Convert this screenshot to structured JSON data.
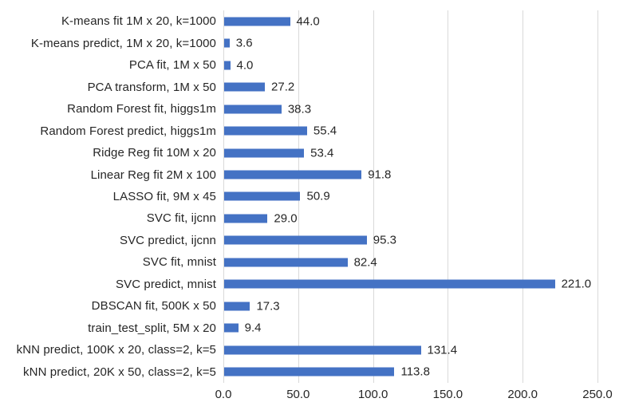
{
  "chart_data": {
    "type": "bar",
    "orientation": "horizontal",
    "title": "",
    "xlabel": "",
    "ylabel": "",
    "xlim": [
      0,
      250
    ],
    "grid": true,
    "legend": "none",
    "bar_color": "#4472c4",
    "text_color": "#262626",
    "gridline_color": "#d9d9d9",
    "categories": [
      "K-means fit 1M x 20, k=1000",
      "K-means predict, 1M x 20, k=1000",
      "PCA fit, 1M x 50",
      "PCA transform, 1M x 50",
      "Random Forest fit, higgs1m",
      "Random Forest predict, higgs1m",
      "Ridge Reg fit 10M x 20",
      "Linear Reg fit 2M x 100",
      "LASSO fit, 9M x 45",
      "SVC fit, ijcnn",
      "SVC predict, ijcnn",
      "SVC fit, mnist",
      "SVC predict, mnist",
      "DBSCAN fit, 500K x 50",
      "train_test_split, 5M x 20",
      "kNN predict, 100K x 20, class=2, k=5",
      "kNN predict, 20K x 50, class=2, k=5"
    ],
    "values": [
      44.0,
      3.6,
      4.0,
      27.2,
      38.3,
      55.4,
      53.4,
      91.8,
      50.9,
      29.0,
      95.3,
      82.4,
      221.0,
      17.3,
      9.4,
      131.4,
      113.8
    ],
    "value_labels": [
      "44.0",
      "3.6",
      "4.0",
      "27.2",
      "38.3",
      "55.4",
      "53.4",
      "91.8",
      "50.9",
      "29.0",
      "95.3",
      "82.4",
      "221.0",
      "17.3",
      "9.4",
      "131.4",
      "113.8"
    ],
    "x_ticks": [
      {
        "value": 0,
        "label": "0.0"
      },
      {
        "value": 50,
        "label": "50.0"
      },
      {
        "value": 100,
        "label": "100.0"
      },
      {
        "value": 150,
        "label": "150.0"
      },
      {
        "value": 200,
        "label": "200.0"
      },
      {
        "value": 250,
        "label": "250.0"
      }
    ]
  }
}
